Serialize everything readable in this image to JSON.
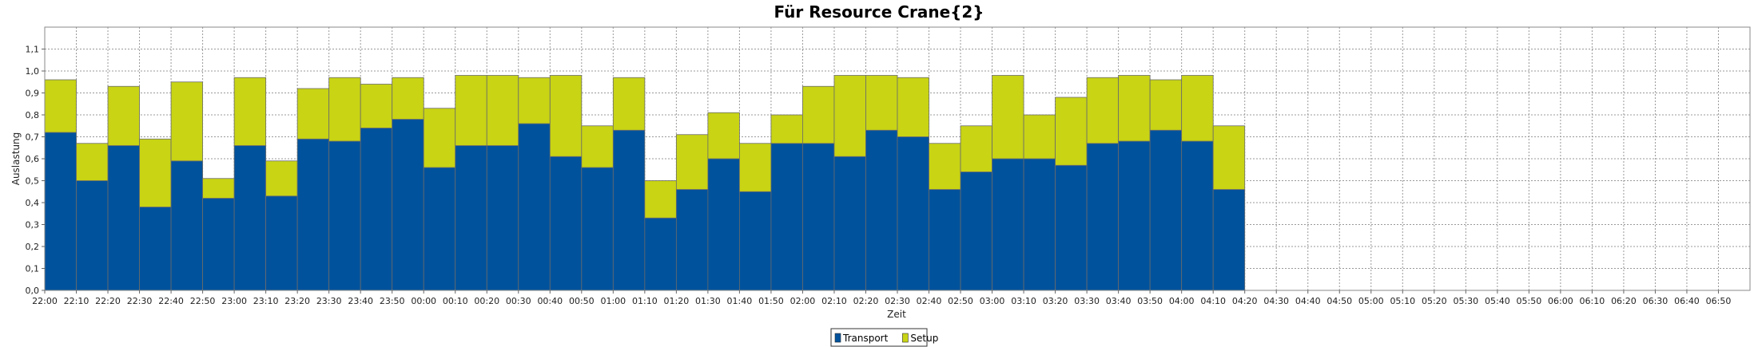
{
  "chart_data": {
    "type": "bar",
    "stacked": true,
    "title": "Für Resource Crane{2}",
    "xlabel": "Zeit",
    "ylabel": "Auslastung",
    "ylim": [
      0,
      1.2
    ],
    "yticks": [
      "0,0",
      "0,1",
      "0,2",
      "0,3",
      "0,4",
      "0,5",
      "0,6",
      "0,7",
      "0,8",
      "0,9",
      "1,0",
      "1,1"
    ],
    "grid": true,
    "legend_position": "bottom-center",
    "colors": {
      "Transport": "#00529c",
      "Setup": "#c8d414"
    },
    "categories": [
      "22:00",
      "22:10",
      "22:20",
      "22:30",
      "22:40",
      "22:50",
      "23:00",
      "23:10",
      "23:20",
      "23:30",
      "23:40",
      "23:50",
      "00:00",
      "00:10",
      "00:20",
      "00:30",
      "00:40",
      "00:50",
      "01:00",
      "01:10",
      "01:20",
      "01:30",
      "01:40",
      "01:50",
      "02:00",
      "02:10",
      "02:20",
      "02:30",
      "02:40",
      "02:50",
      "03:00",
      "03:10",
      "03:20",
      "03:30",
      "03:40",
      "03:50",
      "04:00",
      "04:10",
      "04:20",
      "04:30",
      "04:40",
      "04:50",
      "05:00",
      "05:10",
      "05:20",
      "05:30",
      "05:40",
      "05:50",
      "06:00",
      "06:10",
      "06:20",
      "06:30",
      "06:40",
      "06:50"
    ],
    "series": [
      {
        "name": "Transport",
        "values": [
          0.72,
          0.5,
          0.66,
          0.38,
          0.59,
          0.42,
          0.66,
          0.43,
          0.69,
          0.68,
          0.74,
          0.78,
          0.56,
          0.66,
          0.66,
          0.76,
          0.61,
          0.56,
          0.73,
          0.33,
          0.46,
          0.6,
          0.45,
          0.67,
          0.67,
          0.61,
          0.73,
          0.7,
          0.46,
          0.54,
          0.6,
          0.6,
          0.57,
          0.67,
          0.68,
          0.73,
          0.68,
          0.46,
          0,
          0,
          0,
          0,
          0,
          0,
          0,
          0,
          0,
          0,
          0,
          0,
          0,
          0,
          0,
          0
        ]
      },
      {
        "name": "Setup",
        "values": [
          0.24,
          0.17,
          0.27,
          0.31,
          0.36,
          0.09,
          0.31,
          0.16,
          0.23,
          0.29,
          0.2,
          0.19,
          0.27,
          0.32,
          0.32,
          0.21,
          0.37,
          0.19,
          0.24,
          0.17,
          0.25,
          0.21,
          0.22,
          0.13,
          0.26,
          0.37,
          0.25,
          0.27,
          0.21,
          0.21,
          0.38,
          0.2,
          0.31,
          0.3,
          0.3,
          0.23,
          0.3,
          0.29,
          0,
          0,
          0,
          0,
          0,
          0,
          0,
          0,
          0,
          0,
          0,
          0,
          0,
          0,
          0,
          0
        ]
      }
    ]
  }
}
